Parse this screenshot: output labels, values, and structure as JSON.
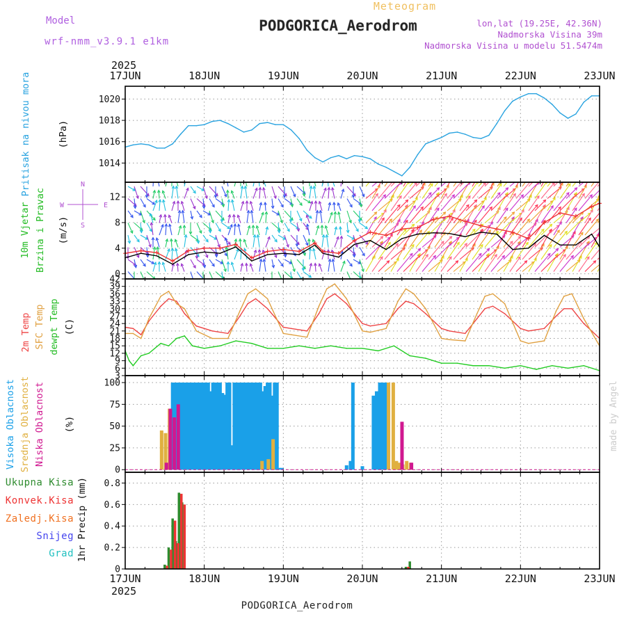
{
  "header": {
    "model_label": "Model",
    "model_name": "wrf-nmm_v3.9.1 e1km",
    "product": "Meteogram",
    "station": "PODGORICA_Aerodrom",
    "lonlat": "lon,lat (19.25E, 42.36N)",
    "elevation": "Nadmorska Visina 39m",
    "model_elevation": "Nadmorska Visina u modelu 51.5474m"
  },
  "time_axis": {
    "year": "2025",
    "days": [
      "17JUN",
      "18JUN",
      "19JUN",
      "20JUN",
      "21JUN",
      "22JUN",
      "23JUN"
    ]
  },
  "footer": {
    "station": "PODGORICA_Aerodrom",
    "credit": "made by Angel"
  },
  "colors": {
    "pressure": "#29a3e0",
    "wind_speed": "#000000",
    "wind_gust": "#ee3333",
    "t2m": "#ee4444",
    "tsfc": "#e0a040",
    "dewpoint": "#22cc22",
    "cloud_high": "#1aa0e8",
    "cloud_mid": "#e0b040",
    "cloud_low": "#d01890",
    "precip_total": "#2e8b2e",
    "precip_conv": "#ee3333",
    "precip_ice": "#f07020",
    "snow": "#4444ee",
    "graupel": "#22c0c0"
  },
  "chart_data": [
    {
      "type": "line",
      "panel": "pressure",
      "ylabel": [
        "Pritisak na nivou mora",
        "(hPa)"
      ],
      "ylim": [
        1012,
        1021
      ],
      "yticks": [
        1014,
        1016,
        1018,
        1020
      ],
      "grid": true,
      "x_unit": "days since 17JUN 00Z",
      "series": [
        {
          "name": "Pritisak na nivou mora",
          "color": "#29a3e0",
          "x": [
            0,
            0.1,
            0.2,
            0.3,
            0.4,
            0.5,
            0.6,
            0.7,
            0.8,
            0.9,
            1.0,
            1.1,
            1.2,
            1.3,
            1.4,
            1.5,
            1.6,
            1.7,
            1.8,
            1.9,
            2.0,
            2.1,
            2.2,
            2.3,
            2.4,
            2.5,
            2.6,
            2.7,
            2.8,
            2.9,
            3.0,
            3.1,
            3.2,
            3.3,
            3.4,
            3.5,
            3.6,
            3.7,
            3.8,
            3.9,
            4.0,
            4.1,
            4.2,
            4.3,
            4.4,
            4.5,
            4.6,
            4.7,
            4.8,
            4.9,
            5.0,
            5.1,
            5.2,
            5.3,
            5.4,
            5.5,
            5.6,
            5.7,
            5.8,
            5.9,
            6.0
          ],
          "y": [
            1015.5,
            1015.7,
            1015.8,
            1015.7,
            1015.4,
            1015.4,
            1015.8,
            1016.7,
            1017.5,
            1017.5,
            1017.6,
            1017.9,
            1018.0,
            1017.7,
            1017.3,
            1016.9,
            1017.1,
            1017.7,
            1017.8,
            1017.6,
            1017.6,
            1017.1,
            1016.3,
            1015.2,
            1014.5,
            1014.1,
            1014.5,
            1014.7,
            1014.4,
            1014.7,
            1014.6,
            1014.4,
            1013.9,
            1013.6,
            1013.2,
            1012.8,
            1013.6,
            1014.8,
            1015.8,
            1016.1,
            1016.4,
            1016.8,
            1016.9,
            1016.7,
            1016.4,
            1016.3,
            1016.6,
            1017.7,
            1018.9,
            1019.8,
            1020.2,
            1020.5,
            1020.5,
            1020.1,
            1019.5,
            1018.7,
            1018.2,
            1018.6,
            1019.7,
            1020.3,
            1020.3
          ]
        }
      ]
    },
    {
      "type": "line",
      "panel": "wind",
      "ylabel": [
        "10m Vjetar",
        "Brzina i Pravac",
        "(m/s)"
      ],
      "ylim": [
        -1,
        14
      ],
      "yticks": [
        0,
        4,
        8,
        12
      ],
      "grid": true,
      "compass": [
        "N",
        "W",
        "E",
        "S"
      ],
      "series": [
        {
          "name": "Brzina",
          "color": "#000000",
          "x": [
            0,
            0.2,
            0.4,
            0.6,
            0.8,
            1.0,
            1.2,
            1.4,
            1.6,
            1.8,
            2.0,
            2.2,
            2.4,
            2.5,
            2.7,
            2.9,
            3.1,
            3.3,
            3.5,
            3.7,
            3.9,
            4.1,
            4.3,
            4.5,
            4.7,
            4.9,
            5.1,
            5.3,
            5.5,
            5.7,
            5.9,
            6.0
          ],
          "y": [
            2.5,
            3.2,
            2.8,
            1.5,
            3.0,
            3.4,
            3.2,
            4.2,
            2.0,
            3.0,
            3.2,
            3.0,
            4.5,
            3.2,
            2.6,
            4.6,
            5.2,
            3.8,
            5.5,
            6.2,
            6.4,
            6.3,
            5.8,
            6.5,
            6.2,
            3.8,
            4.0,
            6.0,
            4.5,
            4.5,
            6.2,
            4.2
          ]
        },
        {
          "name": "Udari",
          "color": "#ee3333",
          "x": [
            0,
            0.2,
            0.4,
            0.6,
            0.8,
            1.0,
            1.2,
            1.4,
            1.6,
            1.8,
            2.0,
            2.2,
            2.4,
            2.5,
            2.7,
            2.9,
            3.1,
            3.3,
            3.5,
            3.7,
            3.9,
            4.1,
            4.3,
            4.5,
            4.7,
            4.9,
            5.1,
            5.3,
            5.5,
            5.7,
            5.9,
            6.0
          ],
          "y": [
            3.2,
            3.6,
            3.3,
            2.0,
            3.6,
            4.0,
            4.0,
            4.6,
            2.5,
            3.5,
            3.8,
            3.5,
            4.8,
            3.5,
            3.2,
            5.2,
            6.5,
            6.0,
            7.0,
            7.2,
            8.5,
            9.0,
            8.2,
            7.5,
            7.0,
            6.5,
            5.5,
            8.0,
            9.5,
            9.0,
            10.5,
            11.0
          ]
        }
      ]
    },
    {
      "type": "line",
      "panel": "temperature",
      "ylabel": [
        "2m Temp",
        "SFC Temp",
        "dewpt Temp",
        "(C)"
      ],
      "ylim": [
        3,
        42
      ],
      "yticks": [
        3,
        6,
        9,
        12,
        15,
        18,
        21,
        24,
        27,
        30,
        33,
        36,
        39,
        42
      ],
      "grid": true,
      "series": [
        {
          "name": "2m Temp",
          "color": "#ee4444",
          "x": [
            0,
            0.1,
            0.2,
            0.3,
            0.45,
            0.55,
            0.65,
            0.75,
            0.9,
            1.1,
            1.3,
            1.45,
            1.55,
            1.65,
            1.8,
            2.0,
            2.1,
            2.3,
            2.45,
            2.55,
            2.65,
            2.8,
            3.0,
            3.1,
            3.3,
            3.45,
            3.55,
            3.65,
            3.8,
            4.0,
            4.1,
            4.3,
            4.45,
            4.55,
            4.65,
            4.8,
            5.0,
            5.1,
            5.3,
            5.45,
            5.55,
            5.65,
            5.8,
            6.0
          ],
          "y": [
            22.5,
            22,
            19.5,
            25,
            31,
            34,
            33,
            28,
            23,
            21,
            20,
            27,
            32,
            34,
            30,
            22.5,
            22,
            21,
            28,
            34,
            36,
            32,
            24,
            23,
            24,
            30,
            33,
            32,
            28,
            22,
            21,
            20,
            26,
            30,
            31,
            28,
            22,
            21,
            22,
            27,
            30,
            30,
            24,
            18
          ]
        },
        {
          "name": "SFC Temp",
          "color": "#e0a040",
          "x": [
            0,
            0.1,
            0.2,
            0.3,
            0.45,
            0.55,
            0.65,
            0.75,
            0.9,
            1.1,
            1.3,
            1.45,
            1.55,
            1.65,
            1.8,
            2.0,
            2.1,
            2.3,
            2.45,
            2.55,
            2.65,
            2.8,
            3.0,
            3.1,
            3.3,
            3.45,
            3.55,
            3.65,
            3.8,
            4.0,
            4.1,
            4.3,
            4.45,
            4.55,
            4.65,
            4.8,
            5.0,
            5.1,
            5.3,
            5.45,
            5.55,
            5.65,
            5.8,
            6.0
          ],
          "y": [
            20,
            20,
            18,
            26,
            35,
            37,
            32,
            30,
            21,
            18,
            18,
            29,
            36,
            38,
            34,
            20,
            19.5,
            18.5,
            31,
            38,
            40,
            34,
            21,
            20.5,
            22,
            33,
            38,
            36,
            30,
            18,
            17.5,
            17,
            28,
            35,
            36,
            32,
            17,
            16,
            17,
            29,
            35,
            36,
            26,
            15
          ]
        },
        {
          "name": "dewpt Temp",
          "color": "#22cc22",
          "x": [
            0,
            0.05,
            0.1,
            0.2,
            0.3,
            0.45,
            0.55,
            0.65,
            0.75,
            0.85,
            1.0,
            1.2,
            1.4,
            1.6,
            1.8,
            2.0,
            2.2,
            2.4,
            2.6,
            2.8,
            3.0,
            3.2,
            3.4,
            3.6,
            3.8,
            4.0,
            4.2,
            4.4,
            4.6,
            4.8,
            5.0,
            5.2,
            5.4,
            5.6,
            5.8,
            6.0
          ],
          "y": [
            13,
            9,
            7,
            11,
            12,
            16,
            15,
            18,
            19,
            15,
            14,
            15,
            17,
            16,
            14,
            14,
            15,
            14,
            15,
            14,
            14,
            13,
            15,
            11,
            10,
            8,
            8,
            7,
            7,
            6,
            7,
            5.5,
            7,
            6,
            7,
            5
          ]
        }
      ]
    },
    {
      "type": "bar",
      "panel": "clouds",
      "ylabel": [
        "Visoka Oblacnost",
        "Srednja Oblacnost",
        "Niska Oblacnost",
        "(%)"
      ],
      "ylim": [
        0,
        105
      ],
      "yticks": [
        0,
        25,
        50,
        75,
        100
      ],
      "grid": true,
      "series": [
        {
          "name": "Visoka Oblacnost",
          "color": "#1aa0e8",
          "x": [
            0.6,
            0.63,
            0.66,
            0.69,
            0.72,
            0.75,
            0.78,
            0.81,
            0.84,
            0.87,
            0.9,
            0.93,
            0.96,
            0.99,
            1.02,
            1.05,
            1.08,
            1.11,
            1.14,
            1.17,
            1.2,
            1.23,
            1.26,
            1.29,
            1.32,
            1.35,
            1.38,
            1.41,
            1.44,
            1.47,
            1.5,
            1.53,
            1.56,
            1.59,
            1.62,
            1.65,
            1.68,
            1.71,
            1.74,
            1.77,
            1.8,
            1.83,
            1.86,
            1.89,
            1.92,
            1.95,
            1.98,
            2.8,
            2.85,
            2.88,
            3.0,
            3.14,
            3.18,
            3.22,
            3.26,
            3.3
          ],
          "y": [
            100,
            100,
            100,
            100,
            100,
            100,
            100,
            100,
            100,
            100,
            100,
            100,
            100,
            100,
            100,
            100,
            90,
            100,
            100,
            100,
            100,
            88,
            86,
            100,
            100,
            28,
            100,
            100,
            100,
            100,
            100,
            100,
            100,
            100,
            100,
            100,
            100,
            100,
            90,
            96,
            100,
            100,
            85,
            100,
            100,
            2,
            2,
            5,
            10,
            100,
            4,
            85,
            90,
            100,
            100,
            100
          ]
        },
        {
          "name": "Srednja Oblacnost",
          "color": "#e0b040",
          "x": [
            0.45,
            0.5,
            0.55,
            1.72,
            1.8,
            1.86,
            3.32,
            3.38,
            3.42,
            3.46,
            3.5,
            3.55,
            3.6
          ],
          "y": [
            45,
            42,
            70,
            10,
            12,
            35,
            100,
            100,
            10,
            8,
            6,
            10,
            8
          ]
        },
        {
          "name": "Niska Oblacnost",
          "color": "#d01890",
          "x": [
            0.5,
            0.55,
            0.6,
            0.65,
            3.48,
            3.6
          ],
          "y": [
            8,
            70,
            60,
            75,
            55,
            8
          ]
        }
      ]
    },
    {
      "type": "bar",
      "panel": "precipitation",
      "ylabel": [
        "1hr Precip (mm)"
      ],
      "ylim": [
        0,
        0.9
      ],
      "yticks": [
        0,
        0.2,
        0.4,
        0.6,
        0.8
      ],
      "grid": true,
      "legend": [
        "Ukupna Kisa",
        "Konvek.Kisa",
        "Zaledj.Kisa",
        "Snijeg",
        "Grad"
      ],
      "series": [
        {
          "name": "Ukupna Kisa",
          "color": "#2e8b2e",
          "x": [
            0.5,
            0.55,
            0.6,
            0.64,
            0.68,
            0.72,
            3.55,
            3.6
          ],
          "y": [
            0.04,
            0.2,
            0.47,
            0.26,
            0.71,
            0.62,
            0.02,
            0.07
          ]
        },
        {
          "name": "Konvek.Kisa",
          "color": "#ee3333",
          "x": [
            0.52,
            0.57,
            0.62,
            0.66,
            0.7,
            0.74,
            3.57
          ],
          "y": [
            0.03,
            0.18,
            0.45,
            0.24,
            0.7,
            0.6,
            0.02
          ]
        }
      ]
    }
  ]
}
